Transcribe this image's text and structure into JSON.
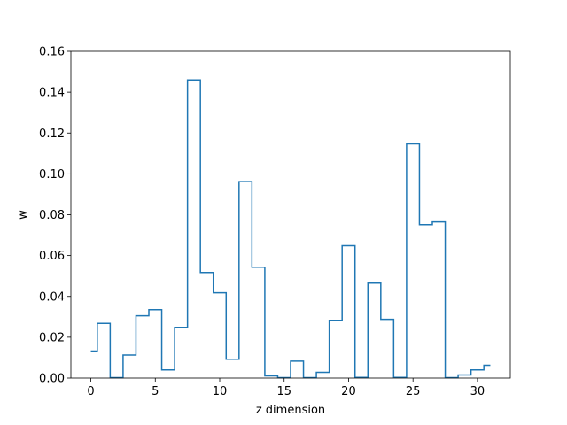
{
  "chart_data": {
    "type": "line",
    "style": "step-mid",
    "xlabel": "z dimension",
    "ylabel": "w",
    "xlim": [
      -1.55,
      32.55
    ],
    "ylim": [
      0,
      0.16
    ],
    "xticks": [
      0,
      5,
      10,
      15,
      20,
      25,
      30
    ],
    "yticks": [
      0.0,
      0.02,
      0.04,
      0.06,
      0.08,
      0.1,
      0.12,
      0.14,
      0.16
    ],
    "grid": false,
    "line_color": "#1f77b4",
    "x": [
      0,
      1,
      2,
      3,
      4,
      5,
      6,
      7,
      8,
      9,
      10,
      11,
      12,
      13,
      14,
      15,
      16,
      17,
      18,
      19,
      20,
      21,
      22,
      23,
      24,
      25,
      26,
      27,
      28,
      29,
      30,
      31
    ],
    "values": [
      0.0132,
      0.0268,
      0.0002,
      0.0113,
      0.0305,
      0.0335,
      0.004,
      0.0248,
      0.146,
      0.0517,
      0.0418,
      0.0092,
      0.0962,
      0.0543,
      0.0011,
      0.0002,
      0.0083,
      0.0002,
      0.0028,
      0.0283,
      0.0648,
      0.0003,
      0.0465,
      0.0288,
      0.0003,
      0.1147,
      0.0751,
      0.0765,
      0.0002,
      0.0015,
      0.004,
      0.0063
    ]
  }
}
